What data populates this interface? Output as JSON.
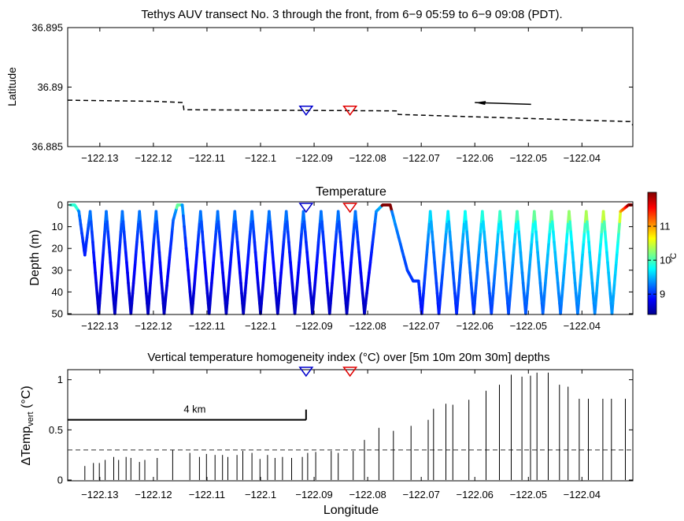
{
  "chart_data": [
    {
      "type": "line",
      "title": "Tethys AUV transect No. 3 through the front, from 6−9 05:59 to 6−9 09:08 (PDT).",
      "xlabel": "",
      "ylabel": "Latitude",
      "xlim": [
        -122.136,
        -122.0305
      ],
      "ylim": [
        36.885,
        36.895
      ],
      "xticks": [
        -122.13,
        -122.12,
        -122.11,
        -122.1,
        -122.09,
        -122.08,
        -122.07,
        -122.06,
        -122.05,
        -122.04
      ],
      "xtick_labels": [
        "−122.13",
        "−122.12",
        "−122.11",
        "−122.1",
        "−122.09",
        "−122.08",
        "−122.07",
        "−122.06",
        "−122.05",
        "−122.04"
      ],
      "yticks": [
        36.885,
        36.89,
        36.895
      ],
      "ytick_labels": [
        "36.885",
        "36.89",
        "36.895"
      ],
      "track": [
        [
          -122.136,
          36.8889
        ],
        [
          -122.1195,
          36.8888
        ],
        [
          -122.1145,
          36.8887
        ],
        [
          -122.1143,
          36.8881
        ],
        [
          -122.0745,
          36.888
        ],
        [
          -122.0743,
          36.8877
        ],
        [
          -122.031,
          36.8871
        ],
        [
          -122.0305,
          36.8868
        ]
      ],
      "arrow": {
        "from": [
          -122.0495,
          36.88855
        ],
        "to": [
          -122.06,
          36.8887
        ]
      },
      "markers": [
        {
          "x": -122.0915,
          "y": 36.888,
          "color": "#0000cc"
        },
        {
          "x": -122.0833,
          "y": 36.888,
          "color": "#e00000"
        }
      ]
    },
    {
      "type": "scatter",
      "title": "Temperature",
      "xlabel": "",
      "ylabel": "Depth (m)",
      "xlim": [
        -122.136,
        -122.0305
      ],
      "ylim": [
        50,
        0
      ],
      "xticks": [
        -122.13,
        -122.12,
        -122.11,
        -122.1,
        -122.09,
        -122.08,
        -122.07,
        -122.06,
        -122.05,
        -122.04
      ],
      "xtick_labels": [
        "−122.13",
        "−122.12",
        "−122.11",
        "−122.1",
        "−122.09",
        "−122.08",
        "−122.07",
        "−122.06",
        "−122.05",
        "−122.04"
      ],
      "yticks": [
        0,
        10,
        20,
        30,
        40,
        50
      ],
      "ytick_labels": [
        "0",
        "10",
        "20",
        "30",
        "40",
        "50"
      ],
      "colorbar": {
        "label": "°C",
        "range": [
          8.4,
          12
        ],
        "ticks": [
          9,
          10,
          11
        ],
        "tick_labels": [
          "9",
          "10",
          "11"
        ]
      },
      "profile_vertices": [
        {
          "x": -122.1355,
          "d": 0
        },
        {
          "x": -122.1347,
          "d": 0
        },
        {
          "x": -122.1339,
          "d": 3
        },
        {
          "x": -122.1328,
          "d": 23
        },
        {
          "x": -122.1318,
          "d": 3
        },
        {
          "x": -122.1302,
          "d": 50
        },
        {
          "x": -122.1288,
          "d": 3
        },
        {
          "x": -122.1272,
          "d": 50
        },
        {
          "x": -122.1258,
          "d": 3
        },
        {
          "x": -122.1242,
          "d": 50
        },
        {
          "x": -122.1226,
          "d": 3
        },
        {
          "x": -122.121,
          "d": 50
        },
        {
          "x": -122.1195,
          "d": 3
        },
        {
          "x": -122.118,
          "d": 50
        },
        {
          "x": -122.1163,
          "d": 7
        },
        {
          "x": -122.1155,
          "d": 0
        },
        {
          "x": -122.1146,
          "d": 0
        },
        {
          "x": -122.1128,
          "d": 50
        },
        {
          "x": -122.1112,
          "d": 3
        },
        {
          "x": -122.1096,
          "d": 50
        },
        {
          "x": -122.108,
          "d": 3
        },
        {
          "x": -122.1064,
          "d": 50
        },
        {
          "x": -122.1048,
          "d": 3
        },
        {
          "x": -122.1032,
          "d": 50
        },
        {
          "x": -122.1016,
          "d": 3
        },
        {
          "x": -122.1,
          "d": 50
        },
        {
          "x": -122.0984,
          "d": 3
        },
        {
          "x": -122.0968,
          "d": 50
        },
        {
          "x": -122.0952,
          "d": 3
        },
        {
          "x": -122.0936,
          "d": 50
        },
        {
          "x": -122.092,
          "d": 3
        },
        {
          "x": -122.0903,
          "d": 50
        },
        {
          "x": -122.0887,
          "d": 3
        },
        {
          "x": -122.0871,
          "d": 50
        },
        {
          "x": -122.0855,
          "d": 3
        },
        {
          "x": -122.0839,
          "d": 50
        },
        {
          "x": -122.0823,
          "d": 3
        },
        {
          "x": -122.0806,
          "d": 50
        },
        {
          "x": -122.0784,
          "d": 3
        },
        {
          "x": -122.0772,
          "d": 0
        },
        {
          "x": -122.0758,
          "d": 0
        },
        {
          "x": -122.0726,
          "d": 30
        },
        {
          "x": -122.0715,
          "d": 35
        },
        {
          "x": -122.0705,
          "d": 35
        },
        {
          "x": -122.0699,
          "d": 50
        },
        {
          "x": -122.0683,
          "d": 3
        },
        {
          "x": -122.0667,
          "d": 50
        },
        {
          "x": -122.065,
          "d": 3
        },
        {
          "x": -122.0634,
          "d": 50
        },
        {
          "x": -122.0618,
          "d": 3
        },
        {
          "x": -122.0602,
          "d": 50
        },
        {
          "x": -122.0586,
          "d": 3
        },
        {
          "x": -122.0569,
          "d": 50
        },
        {
          "x": -122.0553,
          "d": 3
        },
        {
          "x": -122.0537,
          "d": 50
        },
        {
          "x": -122.0521,
          "d": 3
        },
        {
          "x": -122.0505,
          "d": 50
        },
        {
          "x": -122.0489,
          "d": 3
        },
        {
          "x": -122.0473,
          "d": 50
        },
        {
          "x": -122.0457,
          "d": 3
        },
        {
          "x": -122.044,
          "d": 50
        },
        {
          "x": -122.0424,
          "d": 3
        },
        {
          "x": -122.0408,
          "d": 50
        },
        {
          "x": -122.0392,
          "d": 3
        },
        {
          "x": -122.0376,
          "d": 50
        },
        {
          "x": -122.036,
          "d": 3
        },
        {
          "x": -122.0344,
          "d": 50
        },
        {
          "x": -122.0328,
          "d": 3
        },
        {
          "x": -122.0313,
          "d": 0
        },
        {
          "x": -122.0307,
          "d": 0
        }
      ],
      "markers": [
        {
          "x": -122.0915,
          "color": "#0000cc"
        },
        {
          "x": -122.0833,
          "color": "#e00000"
        }
      ]
    },
    {
      "type": "bar",
      "title": "Vertical temperature homogeneity index (°C) over [5m 10m 20m 30m] depths",
      "xlabel": "Longitude",
      "ylabel": "ΔTemp",
      "ylabel_sub": "vert",
      "ylabel_tail": " (°C)",
      "xlim": [
        -122.136,
        -122.0305
      ],
      "ylim": [
        0,
        1.1
      ],
      "xticks": [
        -122.13,
        -122.12,
        -122.11,
        -122.1,
        -122.09,
        -122.08,
        -122.07,
        -122.06,
        -122.05,
        -122.04
      ],
      "xtick_labels": [
        "−122.13",
        "−122.12",
        "−122.11",
        "−122.1",
        "−122.09",
        "−122.08",
        "−122.07",
        "−122.06",
        "−122.05",
        "−122.04"
      ],
      "yticks": [
        0,
        0.5,
        1
      ],
      "ytick_labels": [
        "0",
        "0.5",
        "1"
      ],
      "threshold": 0.3,
      "x": [
        -122.1328,
        -122.1312,
        -122.1301,
        -122.129,
        -122.1274,
        -122.1265,
        -122.1251,
        -122.1242,
        -122.1226,
        -122.1216,
        -122.1193,
        -122.1164,
        -122.1132,
        -122.1114,
        -122.1101,
        -122.1085,
        -122.1071,
        -122.1061,
        -122.1044,
        -122.1033,
        -122.1016,
        -122.1001,
        -122.0987,
        -122.0973,
        -122.0959,
        -122.0942,
        -122.0922,
        -122.0912,
        -122.0897,
        -122.0868,
        -122.0855,
        -122.0827,
        -122.0806,
        -122.0779,
        -122.0752,
        -122.0719,
        -122.0687,
        -122.0677,
        -122.0654,
        -122.0641,
        -122.0611,
        -122.0579,
        -122.0554,
        -122.0532,
        -122.0512,
        -122.0496,
        -122.0484,
        -122.0463,
        -122.0442,
        -122.0426,
        -122.0405,
        -122.0388,
        -122.0361,
        -122.0345,
        -122.0319
      ],
      "values": [
        0.14,
        0.17,
        0.17,
        0.2,
        0.23,
        0.2,
        0.23,
        0.22,
        0.18,
        0.2,
        0.22,
        0.3,
        0.27,
        0.23,
        0.26,
        0.25,
        0.25,
        0.23,
        0.25,
        0.29,
        0.27,
        0.21,
        0.25,
        0.22,
        0.23,
        0.22,
        0.23,
        0.27,
        0.28,
        0.29,
        0.27,
        0.29,
        0.4,
        0.52,
        0.49,
        0.54,
        0.6,
        0.71,
        0.76,
        0.75,
        0.8,
        0.89,
        0.95,
        1.05,
        1.03,
        1.04,
        1.07,
        1.07,
        0.95,
        0.93,
        0.81,
        0.81,
        0.81,
        0.81,
        0.81
      ],
      "scalebar": {
        "label": "4 km",
        "x_from": -122.136,
        "x_to": -122.0915,
        "y": 0.6
      },
      "markers": [
        {
          "x": -122.0915,
          "color": "#0000cc"
        },
        {
          "x": -122.0833,
          "color": "#e00000"
        }
      ]
    }
  ]
}
